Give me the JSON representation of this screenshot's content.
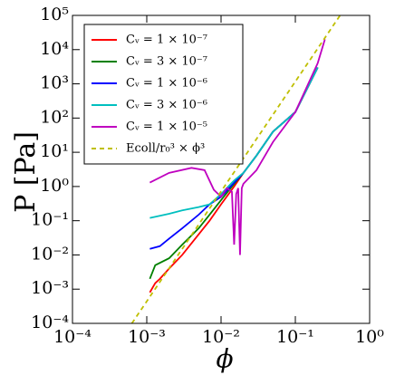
{
  "chart_data": {
    "type": "line",
    "x_label": "ϕ",
    "y_label": "P [Pa]",
    "log_x": true,
    "log_y": true,
    "xlim": [
      0.0001,
      1
    ],
    "ylim": [
      0.0001,
      100000
    ],
    "xticks": [
      {
        "value": 0.0001,
        "label": "10⁻⁴"
      },
      {
        "value": 0.001,
        "label": "10⁻³"
      },
      {
        "value": 0.01,
        "label": "10⁻²"
      },
      {
        "value": 0.1,
        "label": "10⁻¹"
      },
      {
        "value": 1,
        "label": "10⁰"
      }
    ],
    "yticks": [
      {
        "value": 0.0001,
        "label": "10⁻⁴"
      },
      {
        "value": 0.001,
        "label": "10⁻³"
      },
      {
        "value": 0.01,
        "label": "10⁻²"
      },
      {
        "value": 0.1,
        "label": "10⁻¹"
      },
      {
        "value": 1,
        "label": "10⁰"
      },
      {
        "value": 10,
        "label": "10¹"
      },
      {
        "value": 100,
        "label": "10²"
      },
      {
        "value": 1000,
        "label": "10³"
      },
      {
        "value": 10000,
        "label": "10⁴"
      },
      {
        "value": 100000,
        "label": "10⁵"
      }
    ],
    "legend": "upper left",
    "series": [
      {
        "name": "Cᵥ = 1 × 10⁻⁷",
        "color": "#ff0000",
        "style": "solid",
        "x": [
          0.0011,
          0.0013,
          0.0015,
          0.002,
          0.003,
          0.005,
          0.007,
          0.01,
          0.015,
          0.02,
          0.03,
          0.05,
          0.1,
          0.2
        ],
        "values": [
          0.0008,
          0.0015,
          0.002,
          0.004,
          0.01,
          0.04,
          0.1,
          0.3,
          1.0,
          2.5,
          8,
          40,
          150,
          3000
        ]
      },
      {
        "name": "Cᵥ = 3 × 10⁻⁷",
        "color": "#008000",
        "style": "solid",
        "x": [
          0.0011,
          0.0013,
          0.002,
          0.003,
          0.005,
          0.007,
          0.01,
          0.015,
          0.02,
          0.03,
          0.05,
          0.1,
          0.2
        ],
        "values": [
          0.002,
          0.005,
          0.008,
          0.02,
          0.06,
          0.15,
          0.4,
          1.2,
          2.5,
          8,
          40,
          150,
          3000
        ]
      },
      {
        "name": "Cᵥ = 1 × 10⁻⁶",
        "color": "#0000ff",
        "style": "solid",
        "x": [
          0.0011,
          0.0015,
          0.002,
          0.003,
          0.005,
          0.007,
          0.01,
          0.015,
          0.02,
          0.03,
          0.05,
          0.1,
          0.2
        ],
        "values": [
          0.015,
          0.018,
          0.03,
          0.06,
          0.15,
          0.3,
          0.5,
          1.3,
          2.5,
          8,
          40,
          150,
          3000
        ]
      },
      {
        "name": "Cᵥ = 3 × 10⁻⁶",
        "color": "#00bfbf",
        "style": "solid",
        "x": [
          0.0011,
          0.002,
          0.003,
          0.005,
          0.007,
          0.01,
          0.015,
          0.02,
          0.03,
          0.05,
          0.1,
          0.2
        ],
        "values": [
          0.12,
          0.16,
          0.2,
          0.25,
          0.3,
          0.6,
          1.5,
          2.5,
          8,
          40,
          150,
          3000
        ]
      },
      {
        "name": "Cᵥ = 1 × 10⁻⁵",
        "color": "#bf00bf",
        "style": "solid",
        "x": [
          0.0011,
          0.002,
          0.004,
          0.006,
          0.008,
          0.01,
          0.012,
          0.014,
          0.015,
          0.016,
          0.017,
          0.018,
          0.019,
          0.02,
          0.03,
          0.05,
          0.1,
          0.2,
          0.25
        ],
        "values": [
          1.3,
          2.5,
          3.5,
          3,
          0.8,
          0.5,
          0.9,
          0.7,
          0.02,
          0.6,
          0.9,
          0.01,
          0.9,
          1.2,
          3,
          20,
          150,
          4000,
          20000
        ]
      },
      {
        "name": "Ecoll/r₀³ × ϕ³",
        "color": "#bfbf00",
        "style": "dashed",
        "x": [
          0.00063,
          0.4
        ],
        "values": [
          0.0001,
          100000
        ]
      }
    ]
  }
}
